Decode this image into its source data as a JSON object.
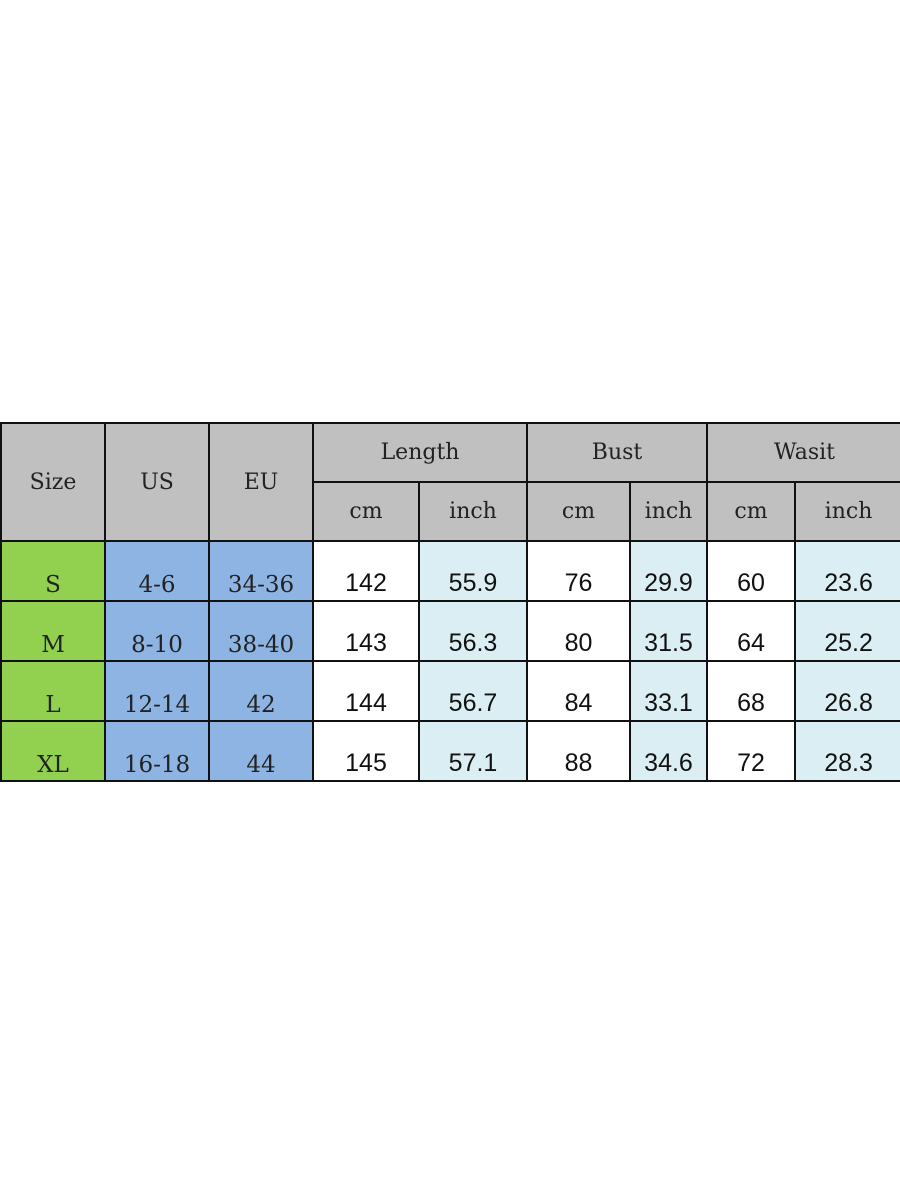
{
  "headers": {
    "size": "Size",
    "us": "US",
    "eu": "EU",
    "groups": [
      "Length",
      "Bust",
      "Wasit"
    ],
    "units": [
      "cm",
      "inch",
      "cm",
      "inch",
      "cm",
      "inch"
    ]
  },
  "rows": [
    {
      "size": "S",
      "us": "4-6",
      "eu": "34-36",
      "values": [
        "142",
        "55.9",
        "76",
        "29.9",
        "60",
        "23.6"
      ]
    },
    {
      "size": "M",
      "us": "8-10",
      "eu": "38-40",
      "values": [
        "143",
        "56.3",
        "80",
        "31.5",
        "64",
        "25.2"
      ]
    },
    {
      "size": "L",
      "us": "12-14",
      "eu": "42",
      "values": [
        "144",
        "56.7",
        "84",
        "33.1",
        "68",
        "26.8"
      ]
    },
    {
      "size": "XL",
      "us": "16-18",
      "eu": "44",
      "values": [
        "145",
        "57.1",
        "88",
        "34.6",
        "72",
        "28.3"
      ]
    }
  ],
  "colors": {
    "header": "#c0c0c0",
    "size": "#92d050",
    "region": "#8db4e2",
    "inch": "#dbeef3"
  }
}
